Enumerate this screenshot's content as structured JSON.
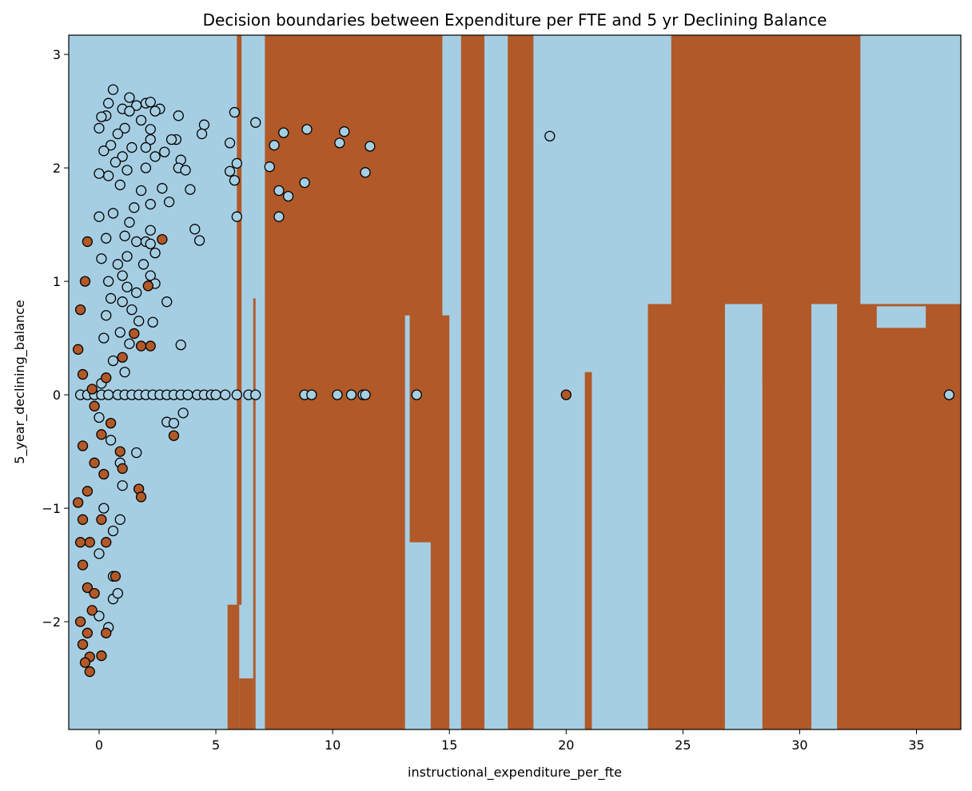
{
  "chart_data": {
    "type": "scatter",
    "title": "Decision boundaries between Expenditure per FTE and 5 yr Declining Balance",
    "xlabel": "instructional_expenditure_per_fte",
    "ylabel": "5_year_declining_balance",
    "xlim": [
      -1.3,
      36.9
    ],
    "ylim": [
      -2.95,
      3.17
    ],
    "xticks": [
      0,
      5,
      10,
      15,
      20,
      25,
      30,
      35
    ],
    "xtick_labels": [
      "0",
      "5",
      "10",
      "15",
      "20",
      "25",
      "30",
      "35"
    ],
    "yticks": [
      -2,
      -1,
      0,
      1,
      2,
      3
    ],
    "ytick_labels": [
      "−2",
      "−1",
      "0",
      "1",
      "2",
      "3"
    ],
    "grid": false,
    "colors": {
      "class_0": "#a6cee3",
      "class_1": "#b15928",
      "marker_edge": "#000000"
    },
    "background_regions": {
      "class_1_regions": [
        {
          "x": [
            5.5,
            6.0
          ],
          "y": [
            -2.95,
            -1.85
          ]
        },
        {
          "x": [
            5.9,
            6.1
          ],
          "y": [
            -1.85,
            3.17
          ]
        },
        {
          "x": [
            6.0,
            6.6
          ],
          "y": [
            -2.95,
            -2.5
          ]
        },
        {
          "x": [
            6.6,
            6.7
          ],
          "y": [
            -2.95,
            0.85
          ]
        },
        {
          "x": [
            7.1,
            14.7
          ],
          "y": [
            -2.95,
            3.17
          ]
        },
        {
          "x": [
            14.5,
            15.0
          ],
          "y": [
            -2.95,
            0.7
          ]
        },
        {
          "x": [
            15.5,
            16.5
          ],
          "y": [
            -2.95,
            3.17
          ]
        },
        {
          "x": [
            17.5,
            18.6
          ],
          "y": [
            -2.95,
            3.17
          ]
        },
        {
          "x": [
            20.8,
            21.1
          ],
          "y": [
            -2.95,
            0.2
          ]
        },
        {
          "x": [
            23.5,
            26.8
          ],
          "y": [
            -2.95,
            0.8
          ]
        },
        {
          "x": [
            24.5,
            32.6
          ],
          "y": [
            0.8,
            3.17
          ]
        },
        {
          "x": [
            28.4,
            30.5
          ],
          "y": [
            -2.95,
            0.8
          ]
        },
        {
          "x": [
            31.6,
            36.9
          ],
          "y": [
            -2.95,
            0.8
          ]
        }
      ],
      "class_0_regions": [
        {
          "x": [
            13.1,
            13.3
          ],
          "y": [
            -2.95,
            0.7
          ]
        },
        {
          "x": [
            13.2,
            14.2
          ],
          "y": [
            -2.95,
            -1.3
          ]
        },
        {
          "x": [
            19.0,
            19.6
          ],
          "y": [
            0.8,
            0.85
          ]
        },
        {
          "x": [
            20.6,
            21.7
          ],
          "y": [
            0.83,
            0.86
          ]
        },
        {
          "x": [
            26.8,
            28.4
          ],
          "y": [
            -2.95,
            0.1
          ]
        },
        {
          "x": [
            30.5,
            31.5
          ],
          "y": [
            -2.95,
            0.78
          ]
        },
        {
          "x": [
            33.3,
            35.4
          ],
          "y": [
            0.59,
            0.78
          ]
        }
      ]
    },
    "series": [
      {
        "class": "class_0",
        "points": [
          [
            0.6,
            2.69
          ],
          [
            1.3,
            2.62
          ],
          [
            2.0,
            2.57
          ],
          [
            2.2,
            2.58
          ],
          [
            1.6,
            2.55
          ],
          [
            0.4,
            2.57
          ],
          [
            1.0,
            2.52
          ],
          [
            2.6,
            2.52
          ],
          [
            2.4,
            2.5
          ],
          [
            1.3,
            2.5
          ],
          [
            0.3,
            2.46
          ],
          [
            3.4,
            2.46
          ],
          [
            0.1,
            2.45
          ],
          [
            1.8,
            2.42
          ],
          [
            1.1,
            2.35
          ],
          [
            0.0,
            2.35
          ],
          [
            2.2,
            2.34
          ],
          [
            0.8,
            2.3
          ],
          [
            4.5,
            2.38
          ],
          [
            4.4,
            2.3
          ],
          [
            3.3,
            2.25
          ],
          [
            2.2,
            2.25
          ],
          [
            0.5,
            2.2
          ],
          [
            2.0,
            2.18
          ],
          [
            1.4,
            2.18
          ],
          [
            3.1,
            2.25
          ],
          [
            0.2,
            2.15
          ],
          [
            1.0,
            2.1
          ],
          [
            0.7,
            2.05
          ],
          [
            2.4,
            2.1
          ],
          [
            2.8,
            2.14
          ],
          [
            3.5,
            2.07
          ],
          [
            3.4,
            2.0
          ],
          [
            3.7,
            1.98
          ],
          [
            2.0,
            2.0
          ],
          [
            1.2,
            1.98
          ],
          [
            0.4,
            1.93
          ],
          [
            0.0,
            1.95
          ],
          [
            0.9,
            1.85
          ],
          [
            1.8,
            1.8
          ],
          [
            2.7,
            1.82
          ],
          [
            3.0,
            1.7
          ],
          [
            3.9,
            1.81
          ],
          [
            2.2,
            1.68
          ],
          [
            1.5,
            1.65
          ],
          [
            0.6,
            1.6
          ],
          [
            0.0,
            1.57
          ],
          [
            1.3,
            1.52
          ],
          [
            2.2,
            1.45
          ],
          [
            1.1,
            1.4
          ],
          [
            0.3,
            1.38
          ],
          [
            1.6,
            1.35
          ],
          [
            2.0,
            1.35
          ],
          [
            2.2,
            1.33
          ],
          [
            2.4,
            1.25
          ],
          [
            1.2,
            1.22
          ],
          [
            0.1,
            1.2
          ],
          [
            0.8,
            1.15
          ],
          [
            1.9,
            1.15
          ],
          [
            2.2,
            1.05
          ],
          [
            1.0,
            1.05
          ],
          [
            0.4,
            1.0
          ],
          [
            1.2,
            0.95
          ],
          [
            2.4,
            0.98
          ],
          [
            1.6,
            0.9
          ],
          [
            0.5,
            0.85
          ],
          [
            1.0,
            0.82
          ],
          [
            2.9,
            0.82
          ],
          [
            1.4,
            0.75
          ],
          [
            0.3,
            0.7
          ],
          [
            1.7,
            0.65
          ],
          [
            2.3,
            0.64
          ],
          [
            0.9,
            0.55
          ],
          [
            0.2,
            0.5
          ],
          [
            1.3,
            0.45
          ],
          [
            3.5,
            0.44
          ],
          [
            0.6,
            0.3
          ],
          [
            1.1,
            0.2
          ],
          [
            0.1,
            0.1
          ],
          [
            5.8,
            2.49
          ],
          [
            6.7,
            2.4
          ],
          [
            5.6,
            2.22
          ],
          [
            5.9,
            2.04
          ],
          [
            5.6,
            1.97
          ],
          [
            5.8,
            1.89
          ],
          [
            7.5,
            2.2
          ],
          [
            7.9,
            2.31
          ],
          [
            8.9,
            2.34
          ],
          [
            10.5,
            2.32
          ],
          [
            10.3,
            2.22
          ],
          [
            11.6,
            2.19
          ],
          [
            7.3,
            2.01
          ],
          [
            11.4,
            1.96
          ],
          [
            8.8,
            1.87
          ],
          [
            7.7,
            1.8
          ],
          [
            8.1,
            1.75
          ],
          [
            5.9,
            1.57
          ],
          [
            7.7,
            1.57
          ],
          [
            4.1,
            1.46
          ],
          [
            4.3,
            1.36
          ],
          [
            19.3,
            2.28
          ],
          [
            -0.8,
            0
          ],
          [
            -0.5,
            0
          ],
          [
            -0.2,
            0
          ],
          [
            0.1,
            0
          ],
          [
            0.4,
            0
          ],
          [
            0.8,
            0
          ],
          [
            1.1,
            0
          ],
          [
            1.4,
            0
          ],
          [
            1.7,
            0
          ],
          [
            2.0,
            0
          ],
          [
            2.3,
            0
          ],
          [
            2.6,
            0
          ],
          [
            2.9,
            0
          ],
          [
            3.2,
            0
          ],
          [
            3.5,
            0
          ],
          [
            3.8,
            0
          ],
          [
            4.2,
            0
          ],
          [
            4.5,
            0
          ],
          [
            4.8,
            0
          ],
          [
            5.0,
            0
          ],
          [
            5.4,
            0
          ],
          [
            5.9,
            0
          ],
          [
            6.4,
            0
          ],
          [
            6.7,
            0
          ],
          [
            8.8,
            0
          ],
          [
            9.1,
            0
          ],
          [
            10.2,
            0
          ],
          [
            10.8,
            0
          ],
          [
            11.3,
            0
          ],
          [
            11.4,
            0
          ],
          [
            13.6,
            0
          ],
          [
            36.4,
            0
          ],
          [
            2.9,
            -0.24
          ],
          [
            3.2,
            -0.25
          ],
          [
            3.6,
            -0.16
          ],
          [
            1.6,
            -0.51
          ],
          [
            0.0,
            -0.2
          ],
          [
            0.5,
            -0.4
          ],
          [
            0.9,
            -0.6
          ],
          [
            1.0,
            -0.8
          ],
          [
            0.2,
            -1.0
          ],
          [
            0.6,
            -1.2
          ],
          [
            0.9,
            -1.1
          ],
          [
            0.0,
            -1.4
          ],
          [
            0.6,
            -1.6
          ],
          [
            0.6,
            -1.8
          ],
          [
            0.0,
            -1.95
          ],
          [
            0.4,
            -2.05
          ],
          [
            0.8,
            -1.75
          ]
        ]
      },
      {
        "class": "class_1",
        "points": [
          [
            2.7,
            1.37
          ],
          [
            2.1,
            0.96
          ],
          [
            2.2,
            0.43
          ],
          [
            1.8,
            0.43
          ],
          [
            1.5,
            0.54
          ],
          [
            1.0,
            0.33
          ],
          [
            0.3,
            0.15
          ],
          [
            -0.7,
            0.18
          ],
          [
            -0.8,
            0.75
          ],
          [
            -0.5,
            1.35
          ],
          [
            -0.6,
            1.0
          ],
          [
            -0.9,
            0.4
          ],
          [
            -0.3,
            0.05
          ],
          [
            20.0,
            0
          ],
          [
            3.2,
            -0.36
          ],
          [
            1.7,
            -0.83
          ],
          [
            1.8,
            -0.9
          ],
          [
            1.0,
            -0.65
          ],
          [
            0.1,
            -0.35
          ],
          [
            -0.2,
            -0.6
          ],
          [
            -0.5,
            -0.85
          ],
          [
            -0.7,
            -1.1
          ],
          [
            -0.4,
            -1.3
          ],
          [
            -0.7,
            -1.5
          ],
          [
            -0.5,
            -1.7
          ],
          [
            -0.3,
            -1.9
          ],
          [
            -0.8,
            -2.0
          ],
          [
            -0.5,
            -2.1
          ],
          [
            -0.7,
            -2.2
          ],
          [
            -0.4,
            -2.31
          ],
          [
            -0.6,
            -2.36
          ],
          [
            -0.4,
            -2.44
          ],
          [
            0.3,
            -2.1
          ],
          [
            0.7,
            -1.6
          ],
          [
            0.3,
            -1.3
          ],
          [
            0.1,
            -1.1
          ],
          [
            0.9,
            -0.5
          ],
          [
            -0.2,
            -0.1
          ],
          [
            0.5,
            -0.25
          ],
          [
            -0.8,
            -1.3
          ],
          [
            -0.9,
            -0.95
          ],
          [
            -0.7,
            -0.45
          ],
          [
            -0.2,
            -1.75
          ],
          [
            0.1,
            -2.3
          ],
          [
            0.2,
            -0.7
          ]
        ]
      }
    ]
  }
}
